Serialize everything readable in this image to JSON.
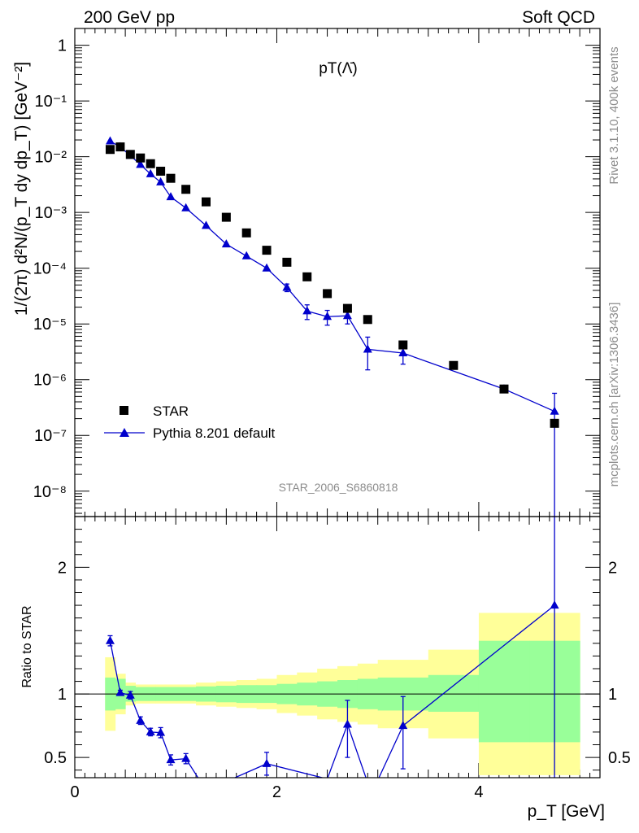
{
  "header": {
    "left": "200 GeV pp",
    "right": "Soft QCD"
  },
  "side_labels": {
    "rivet": "Rivet 3.1.10,  400k events",
    "mcplots": "mcplots.cern.ch [arXiv:1306.3436]"
  },
  "colors": {
    "data": "#000000",
    "mc": "#0000cc",
    "band_inner": "#99ff99",
    "band_outer": "#ffff99"
  },
  "chart_data": [
    {
      "type": "scatter",
      "title": "pT(Λ̄)",
      "analysis_label": "STAR_2006_S6860818",
      "ylabel": "1/(2π) d²N/(p_T dy dp_T) [GeV⁻²]",
      "xlim": [
        0,
        5.2
      ],
      "ylim": [
        3.5e-09,
        2.0
      ],
      "yscale": "log",
      "ytick_labels": [
        "1",
        "10⁻¹",
        "10⁻²",
        "10⁻³",
        "10⁻⁴",
        "10⁻⁵",
        "10⁻⁶",
        "10⁻⁷",
        "10⁻⁸"
      ],
      "legend": {
        "position": "lower-left",
        "entries": [
          "STAR",
          "Pythia 8.201 default"
        ]
      },
      "series": [
        {
          "name": "STAR",
          "marker": "square",
          "x": [
            0.35,
            0.45,
            0.55,
            0.65,
            0.75,
            0.85,
            0.95,
            1.1,
            1.3,
            1.5,
            1.7,
            1.9,
            2.1,
            2.3,
            2.5,
            2.7,
            2.9,
            3.25,
            3.75,
            4.25,
            4.75
          ],
          "y": [
            0.0135,
            0.015,
            0.011,
            0.0095,
            0.0075,
            0.0055,
            0.0041,
            0.0026,
            0.00155,
            0.00082,
            0.00043,
            0.00021,
            0.000128,
            7e-05,
            3.5e-05,
            1.9e-05,
            1.2e-05,
            4.2e-06,
            1.8e-06,
            6.8e-07,
            1.65e-07
          ]
        },
        {
          "name": "Pythia 8.201 default",
          "marker": "triangle",
          "x": [
            0.35,
            0.45,
            0.55,
            0.65,
            0.75,
            0.85,
            0.95,
            1.1,
            1.3,
            1.5,
            1.7,
            1.9,
            2.1,
            2.3,
            2.5,
            2.7,
            2.9,
            3.25,
            4.25,
            4.75
          ],
          "y": [
            0.019,
            0.015,
            0.0105,
            0.0072,
            0.0049,
            0.0035,
            0.0019,
            0.0012,
            0.00058,
            0.00027,
            0.000165,
            0.0001,
            4.5e-05,
            1.7e-05,
            1.35e-05,
            1.4e-05,
            3.5e-06,
            3e-06,
            6.8e-07,
            2.7e-07
          ],
          "y_err_low": [
            0.0007,
            0.0005,
            0.0004,
            0.0003,
            0.0002,
            0.00015,
            0.0001,
            5e-05,
            2.5e-05,
            1.5e-05,
            1e-05,
            8e-06,
            7e-06,
            5e-06,
            4e-06,
            4e-06,
            2e-06,
            1.1e-06,
            0,
            2.7e-07
          ],
          "y_err_high": [
            0.0007,
            0.0005,
            0.0004,
            0.0003,
            0.0002,
            0.00015,
            0.0001,
            5e-05,
            2.5e-05,
            1.5e-05,
            1e-05,
            8e-06,
            7e-06,
            5e-06,
            4e-06,
            4e-06,
            2.3e-06,
            1.1e-06,
            0,
            3e-07
          ]
        }
      ]
    },
    {
      "type": "scatter",
      "ylabel": "Ratio to STAR",
      "xlabel": "p_T [GeV]",
      "xlim": [
        0,
        5.2
      ],
      "ylim": [
        0.34,
        2.4
      ],
      "xtick_labels": [
        "0",
        "2",
        "4"
      ],
      "ytick_labels": [
        "0.5",
        "1",
        "2"
      ],
      "bands": {
        "edges": [
          0.3,
          0.4,
          0.5,
          0.6,
          0.7,
          0.8,
          0.9,
          1.0,
          1.2,
          1.4,
          1.6,
          1.8,
          2.0,
          2.2,
          2.4,
          2.6,
          2.8,
          3.0,
          3.5,
          4.0,
          4.5,
          5.0
        ],
        "inner_low": [
          0.87,
          0.88,
          0.94,
          0.945,
          0.945,
          0.945,
          0.945,
          0.945,
          0.94,
          0.935,
          0.93,
          0.93,
          0.92,
          0.91,
          0.9,
          0.89,
          0.88,
          0.87,
          0.86,
          0.62,
          0.62,
          0.38
        ],
        "inner_high": [
          1.13,
          1.12,
          1.065,
          1.055,
          1.055,
          1.055,
          1.055,
          1.055,
          1.06,
          1.065,
          1.07,
          1.07,
          1.08,
          1.09,
          1.1,
          1.11,
          1.12,
          1.13,
          1.15,
          1.42,
          1.42,
          1.62
        ],
        "outer_low": [
          0.71,
          0.84,
          0.91,
          0.925,
          0.925,
          0.925,
          0.925,
          0.925,
          0.91,
          0.9,
          0.89,
          0.88,
          0.85,
          0.83,
          0.8,
          0.78,
          0.76,
          0.73,
          0.65,
          0.36,
          0.36,
          0.36
        ],
        "outer_high": [
          1.29,
          1.16,
          1.09,
          1.075,
          1.075,
          1.075,
          1.075,
          1.075,
          1.09,
          1.1,
          1.11,
          1.12,
          1.15,
          1.17,
          1.2,
          1.22,
          1.24,
          1.27,
          1.35,
          1.64,
          1.64,
          2.1
        ]
      },
      "series": [
        {
          "name": "Pythia 8.201 default",
          "marker": "triangle",
          "x": [
            0.35,
            0.45,
            0.55,
            0.65,
            0.75,
            0.85,
            0.95,
            1.1,
            1.9,
            2.7,
            3.25,
            4.75
          ],
          "y": [
            1.42,
            1.01,
            0.99,
            0.79,
            0.7,
            0.695,
            0.48,
            0.49,
            0.45,
            0.76,
            0.75,
            1.7
          ],
          "y_err_low": [
            0.04,
            0.02,
            0.03,
            0.03,
            0.03,
            0.04,
            0.04,
            0.04,
            0.09,
            0.26,
            0.34,
            1.7
          ],
          "y_err_high": [
            0.04,
            0.02,
            0.03,
            0.03,
            0.03,
            0.04,
            0.04,
            0.04,
            0.09,
            0.19,
            0.23,
            0.7
          ]
        }
      ],
      "offscale_points": [
        {
          "x": 1.3,
          "y": 0.24
        },
        {
          "x": 2.5,
          "y": 0.33
        },
        {
          "x": 2.9,
          "y": 0.3
        },
        {
          "x": 3.0,
          "y": 0.32
        }
      ]
    }
  ]
}
